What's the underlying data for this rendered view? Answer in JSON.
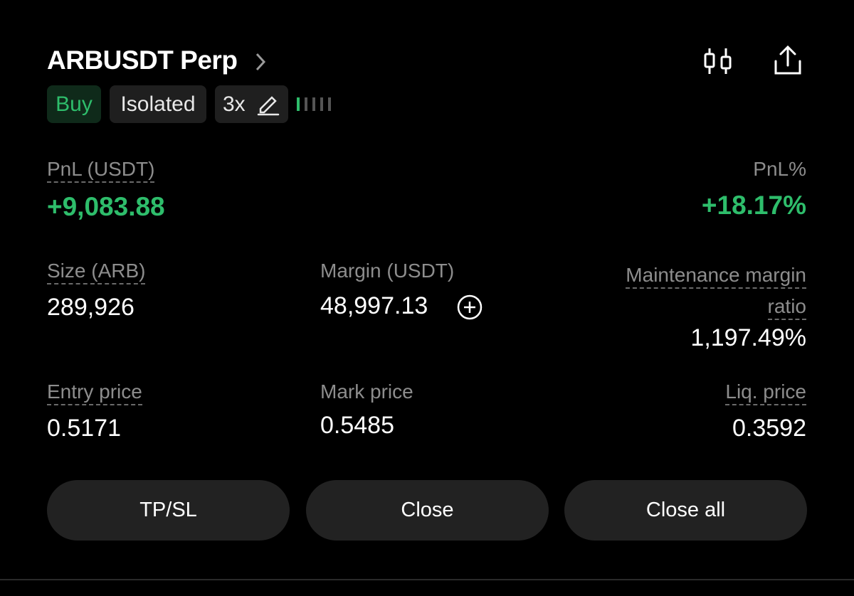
{
  "header": {
    "title": "ARBUSDT Perp"
  },
  "tags": {
    "side": "Buy",
    "margin_mode": "Isolated",
    "leverage": "3x"
  },
  "pnl": {
    "label": "PnL (USDT)",
    "value": "+9,083.88",
    "percent_label": "PnL%",
    "percent_value": "+18.17%"
  },
  "metrics": [
    {
      "label": "Size (ARB)",
      "value": "289,926"
    },
    {
      "label": "Margin (USDT)",
      "value": "48,997.13"
    },
    {
      "label": "Maintenance margin ratio",
      "value": "1,197.49%"
    },
    {
      "label": "Entry price",
      "value": "0.5171"
    },
    {
      "label": "Mark price",
      "value": "0.5485"
    },
    {
      "label": "Liq. price",
      "value": "0.3592"
    }
  ],
  "buttons": [
    "TP/SL",
    "Close",
    "Close all"
  ]
}
